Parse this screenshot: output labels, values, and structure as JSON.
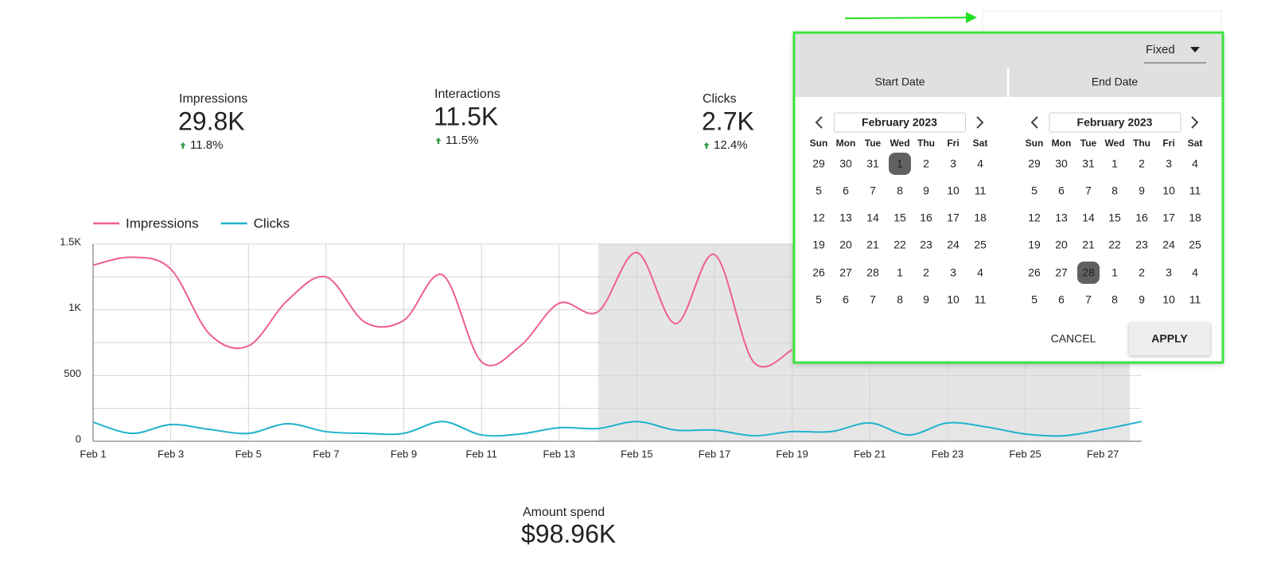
{
  "scorecards": [
    {
      "label": "Impressions",
      "value": "29.8K",
      "change": "11.8%"
    },
    {
      "label": "Interactions",
      "value": "11.5K",
      "change": "11.5%"
    },
    {
      "label": "Clicks",
      "value": "2.7K",
      "change": "12.4%"
    }
  ],
  "amount": {
    "label": "Amount spend",
    "value": "$98.96K"
  },
  "date_picker": {
    "mode": "Fixed",
    "tabs": [
      "Start Date",
      "End Date"
    ],
    "weekdays": [
      "Sun",
      "Mon",
      "Tue",
      "Wed",
      "Thu",
      "Fri",
      "Sat"
    ],
    "calendars": [
      {
        "month": "February 2023",
        "selected_day": 1,
        "days": [
          [
            29,
            30,
            31,
            1,
            2,
            3,
            4
          ],
          [
            5,
            6,
            7,
            8,
            9,
            10,
            11
          ],
          [
            12,
            13,
            14,
            15,
            16,
            17,
            18
          ],
          [
            19,
            20,
            21,
            22,
            23,
            24,
            25
          ],
          [
            26,
            27,
            28,
            1,
            2,
            3,
            4
          ],
          [
            5,
            6,
            7,
            8,
            9,
            10,
            11
          ]
        ]
      },
      {
        "month": "February 2023",
        "selected_day": 28,
        "days": [
          [
            29,
            30,
            31,
            1,
            2,
            3,
            4
          ],
          [
            5,
            6,
            7,
            8,
            9,
            10,
            11
          ],
          [
            12,
            13,
            14,
            15,
            16,
            17,
            18
          ],
          [
            19,
            20,
            21,
            22,
            23,
            24,
            25
          ],
          [
            26,
            27,
            28,
            1,
            2,
            3,
            4
          ],
          [
            5,
            6,
            7,
            8,
            9,
            10,
            11
          ]
        ]
      }
    ],
    "cancel": "CANCEL",
    "apply": "APPLY"
  },
  "chart_data": {
    "type": "line",
    "categories": [
      "Feb 1",
      null,
      "Feb 3",
      null,
      "Feb 5",
      null,
      "Feb 7",
      null,
      "Feb 9",
      null,
      "Feb 11",
      null,
      "Feb 13",
      null,
      "Feb 15",
      null,
      "Feb 17",
      null,
      "Feb 19",
      null,
      "Feb 21",
      null,
      "Feb 23",
      null,
      "Feb 25",
      null,
      "Feb 27",
      null
    ],
    "series": [
      {
        "name": "Impressions",
        "color": "#ef5f8e",
        "values": [
          1340,
          1400,
          1310,
          815,
          725,
          1070,
          1250,
          905,
          920,
          1265,
          605,
          725,
          1050,
          985,
          1435,
          895,
          1420,
          605,
          695,
          null,
          null,
          null,
          null,
          null,
          null,
          null,
          null,
          null
        ]
      },
      {
        "name": "Clicks",
        "color": "#1fb3cc",
        "values": [
          145,
          60,
          127,
          90,
          60,
          133,
          73,
          60,
          60,
          150,
          48,
          55,
          103,
          97,
          150,
          85,
          85,
          42,
          73,
          73,
          139,
          48,
          139,
          109,
          55,
          42,
          90,
          150
        ]
      }
    ],
    "ylim": [
      0,
      1500
    ],
    "yticks": [
      0,
      500,
      {
        "value": 1000,
        "label": "1K"
      },
      {
        "value": 1500,
        "label": "1.5K"
      }
    ],
    "minor_yticks": [
      250,
      750,
      1250
    ],
    "grid": true
  }
}
